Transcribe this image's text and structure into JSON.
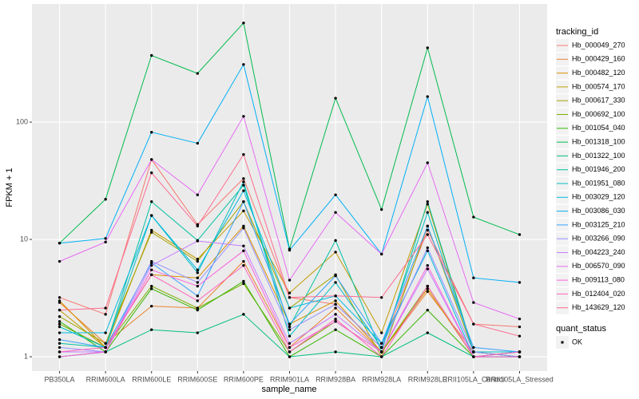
{
  "chart_data": {
    "type": "line",
    "x_label": "sample_name",
    "y_label": "FPKM + 1",
    "categories": [
      "PB350LA",
      "RRIM600LA",
      "RRIM600LE",
      "RRIM600SE",
      "RRIM600PE",
      "RRIM901LA",
      "RRIM928BA",
      "RRIM928LA",
      "RRIM928LE",
      "RRII105LA_Control",
      "RRII105LA_Stressed"
    ],
    "log_scale": true,
    "grid": true,
    "ylim": [
      0.755,
      1016
    ],
    "yticks": [
      1,
      10,
      100
    ],
    "legend_title": "tracking_id",
    "legend_position": "right",
    "shape_legend": {
      "title": "quant_status",
      "labels": [
        "OK"
      ]
    },
    "series": [
      {
        "name": "Hb_000049_270",
        "color": "#F8766D",
        "values": [
          3.2,
          2.3,
          48,
          13.4,
          33,
          3.2,
          2.8,
          1.2,
          12,
          1.9,
          1.8
        ]
      },
      {
        "name": "Hb_000429_160",
        "color": "#EA8331",
        "values": [
          2.9,
          1.3,
          2.7,
          2.6,
          6.5,
          1.2,
          2.6,
          1.1,
          3.6,
          1.1,
          1.0
        ]
      },
      {
        "name": "Hb_000482_120",
        "color": "#D89000",
        "values": [
          3.0,
          1.2,
          5.0,
          4.7,
          13,
          1.9,
          3.0,
          1.1,
          3.8,
          1.0,
          1.1
        ]
      },
      {
        "name": "Hb_000574_170",
        "color": "#C09B00",
        "values": [
          2.5,
          1.2,
          12,
          6.8,
          17.5,
          3.5,
          7.8,
          1.6,
          20,
          1.1,
          1.0
        ]
      },
      {
        "name": "Hb_000617_330",
        "color": "#A3A500",
        "values": [
          2.2,
          1.3,
          11.5,
          6.5,
          21,
          2.6,
          5.0,
          1.0,
          13,
          1.1,
          1.1
        ]
      },
      {
        "name": "Hb_000692_100",
        "color": "#7CAE00",
        "values": [
          1.9,
          1.2,
          4.0,
          2.6,
          4.2,
          1.1,
          2.0,
          1.1,
          4.0,
          1.0,
          1.0
        ]
      },
      {
        "name": "Hb_001054_040",
        "color": "#39B600",
        "values": [
          2.0,
          1.1,
          3.8,
          2.5,
          4.4,
          1.0,
          1.7,
          1.0,
          2.5,
          1.0,
          1.1
        ]
      },
      {
        "name": "Hb_001318_100",
        "color": "#00BB4E",
        "values": [
          9.3,
          22,
          370,
          260,
          700,
          8.3,
          160,
          18,
          430,
          15.5,
          11
        ]
      },
      {
        "name": "Hb_001322_100",
        "color": "#00BF7D",
        "values": [
          1.0,
          1.1,
          1.7,
          1.6,
          2.3,
          1.0,
          1.1,
          1.0,
          1.6,
          1.0,
          1.0
        ]
      },
      {
        "name": "Hb_001946_200",
        "color": "#00C1A3",
        "values": [
          1.3,
          1.2,
          21,
          9.8,
          29,
          1.8,
          9.8,
          1.1,
          21,
          1.1,
          1.0
        ]
      },
      {
        "name": "Hb_001951_080",
        "color": "#00BFC4",
        "values": [
          1.8,
          1.2,
          16,
          5.2,
          31,
          1.5,
          4.3,
          1.2,
          17,
          1.1,
          1.1
        ]
      },
      {
        "name": "Hb_003029_120",
        "color": "#00BAE0",
        "values": [
          1.6,
          1.6,
          16,
          5.5,
          26,
          2.6,
          3.3,
          1.3,
          8.0,
          1.0,
          1.1
        ]
      },
      {
        "name": "Hb_003086_030",
        "color": "#00B0F6",
        "values": [
          9.3,
          10.2,
          82,
          66,
          310,
          8.1,
          24,
          7.5,
          165,
          4.7,
          4.3
        ]
      },
      {
        "name": "Hb_003125_210",
        "color": "#35A2FF",
        "values": [
          1.4,
          1.2,
          6.3,
          3.3,
          21,
          1.9,
          4.9,
          1.3,
          13,
          1.2,
          1.1
        ]
      },
      {
        "name": "Hb_003266_090",
        "color": "#9590FF",
        "values": [
          1.2,
          1.1,
          6.5,
          4.3,
          12.5,
          1.7,
          2.8,
          1.2,
          8.5,
          1.1,
          1.0
        ]
      },
      {
        "name": "Hb_004223_240",
        "color": "#C77CFF",
        "values": [
          1.1,
          1.1,
          6.0,
          9.7,
          8.8,
          1.3,
          2.3,
          1.1,
          5.6,
          1.0,
          1.1
        ]
      },
      {
        "name": "Hb_006570_090",
        "color": "#E76BF3",
        "values": [
          6.5,
          9.5,
          48,
          24,
          112,
          4.5,
          17,
          7.5,
          45,
          2.9,
          2.1
        ]
      },
      {
        "name": "Hb_009113_080",
        "color": "#FA62DB",
        "values": [
          1.0,
          1.1,
          5.5,
          4.0,
          8.0,
          1.2,
          2.0,
          1.1,
          6.0,
          1.0,
          1.0
        ]
      },
      {
        "name": "Hb_012404_020",
        "color": "#FF62BC",
        "values": [
          1.1,
          1.2,
          5.0,
          3.0,
          6.0,
          1.1,
          2.1,
          1.0,
          4.0,
          1.0,
          1.1
        ]
      },
      {
        "name": "Hb_143629_120",
        "color": "#FF6C91",
        "values": [
          2.5,
          2.6,
          37,
          13,
          53,
          3.2,
          3.3,
          3.2,
          11,
          1.9,
          1.5
        ]
      }
    ]
  }
}
